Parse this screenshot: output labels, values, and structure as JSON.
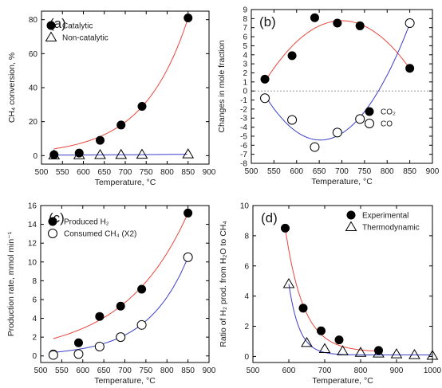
{
  "chart_data": [
    {
      "panel": "(a)",
      "type": "scatter",
      "xlabel": "Temperature, °C",
      "ylabel": "CH₄ conversion, %",
      "xlim": [
        500,
        900
      ],
      "ylim": [
        -5,
        85
      ],
      "xticks": [
        500,
        550,
        600,
        650,
        700,
        750,
        800,
        850,
        900
      ],
      "yticks": [
        0,
        20,
        40,
        60,
        80
      ],
      "legend_position": "top-left",
      "series": [
        {
          "name": "Catalytic",
          "marker": "filled-circle",
          "fit_color": "#e8463b",
          "x": [
            530,
            590,
            640,
            690,
            740,
            850
          ],
          "y": [
            0.5,
            1.5,
            9,
            18,
            29,
            81
          ]
        },
        {
          "name": "Non-catalytic",
          "marker": "open-triangle",
          "fit_color": "#3a3fc8",
          "x": [
            530,
            590,
            640,
            690,
            740,
            850
          ],
          "y": [
            0.2,
            0.3,
            0.4,
            0.5,
            0.6,
            0.8
          ]
        }
      ]
    },
    {
      "panel": "(b)",
      "type": "scatter",
      "xlabel": "Temperature, °C",
      "ylabel": "Changes in mole fraction",
      "xlim": [
        500,
        900
      ],
      "ylim": [
        -8,
        9
      ],
      "xticks": [
        500,
        550,
        600,
        650,
        700,
        750,
        800,
        850,
        900
      ],
      "yticks": [
        -8,
        -7,
        -6,
        -5,
        -4,
        -3,
        -2,
        -1,
        0,
        1,
        2,
        3,
        4,
        5,
        6,
        7,
        8,
        9
      ],
      "zero_line": true,
      "legend_position": "bottom-right",
      "series": [
        {
          "name": "CO₂",
          "marker": "filled-circle",
          "fit_color": "#e8463b",
          "x": [
            530,
            590,
            640,
            690,
            740,
            850
          ],
          "y": [
            1.3,
            3.9,
            8.1,
            7.5,
            7.2,
            2.5
          ]
        },
        {
          "name": "CO",
          "marker": "open-circle",
          "fit_color": "#3a3fc8",
          "x": [
            530,
            590,
            640,
            690,
            740,
            850
          ],
          "y": [
            -0.8,
            -3.2,
            -6.2,
            -4.6,
            -3.1,
            7.5
          ]
        }
      ]
    },
    {
      "panel": "(c)",
      "type": "scatter",
      "xlabel": "Temperature, °C",
      "ylabel": "Production rate, mmol min⁻¹",
      "xlim": [
        500,
        900
      ],
      "ylim": [
        -0.7,
        16
      ],
      "xticks": [
        500,
        550,
        600,
        650,
        700,
        750,
        800,
        850,
        900
      ],
      "yticks": [
        0,
        2,
        4,
        6,
        8,
        10,
        12,
        14,
        16
      ],
      "legend_position": "top-left",
      "series": [
        {
          "name": "Produced H₂",
          "marker": "filled-circle",
          "fit_color": "#e8463b",
          "x": [
            530,
            590,
            640,
            690,
            740,
            850
          ],
          "y": [
            0.2,
            1.4,
            4.2,
            5.3,
            7.1,
            15.2
          ]
        },
        {
          "name": "Consumed CH₄ (X2)",
          "marker": "open-circle",
          "fit_color": "#3a3fc8",
          "x": [
            530,
            590,
            640,
            690,
            740,
            850
          ],
          "y": [
            0.1,
            0.2,
            1.0,
            2.0,
            3.3,
            10.5
          ]
        }
      ]
    },
    {
      "panel": "(d)",
      "type": "scatter",
      "xlabel": "Temperature, °C",
      "ylabel": "Ratio of H₂ prod. from H₂O to CH₄",
      "xlim": [
        500,
        1000
      ],
      "ylim": [
        -0.4,
        10
      ],
      "xticks": [
        500,
        600,
        700,
        800,
        900,
        1000
      ],
      "yticks": [
        0,
        2,
        4,
        6,
        8,
        10
      ],
      "legend_position": "top-right",
      "series": [
        {
          "name": "Experimental",
          "marker": "filled-circle",
          "fit_color": "#e8463b",
          "x": [
            590,
            640,
            690,
            740,
            850
          ],
          "y": [
            8.5,
            3.2,
            1.7,
            1.1,
            0.4
          ]
        },
        {
          "name": "Thermodynamic",
          "marker": "open-triangle",
          "fit_color": "#3a3fc8",
          "x": [
            600,
            650,
            700,
            750,
            800,
            850,
            900,
            950,
            1000
          ],
          "y": [
            4.8,
            0.9,
            0.5,
            0.35,
            0.25,
            0.2,
            0.15,
            0.1,
            0.05
          ]
        }
      ]
    }
  ]
}
